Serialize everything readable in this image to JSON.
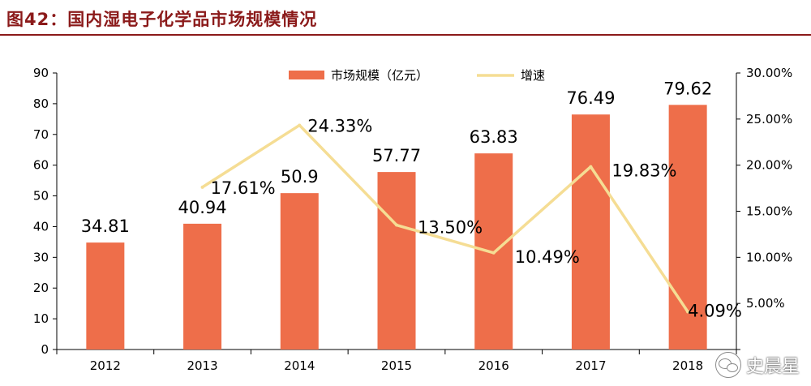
{
  "figure": {
    "title": "图42：国内湿电子化学品市场规模情况"
  },
  "watermark": {
    "text": "史晨星",
    "icon": "wechat-icon"
  },
  "colors": {
    "bar": "#EE6E4A",
    "line": "#F5DD94",
    "title": "#8B1A1A",
    "axis": "#000000",
    "text": "#000000"
  },
  "chart_data": {
    "type": "bar",
    "categories": [
      "2012",
      "2013",
      "2014",
      "2015",
      "2016",
      "2017",
      "2018"
    ],
    "series": [
      {
        "name": "市场规模（亿元）",
        "type": "bar",
        "axis": "left",
        "values": [
          34.81,
          40.94,
          50.9,
          57.77,
          63.83,
          76.49,
          79.62
        ],
        "labels": [
          "34.81",
          "40.94",
          "50.9",
          "57.77",
          "63.83",
          "76.49",
          "79.62"
        ]
      },
      {
        "name": "增速",
        "type": "line",
        "axis": "right",
        "values": [
          null,
          17.61,
          24.33,
          13.5,
          10.49,
          19.83,
          4.09
        ],
        "labels": [
          "",
          "17.61%",
          "24.33%",
          "13.50%",
          "10.49%",
          "19.83%",
          "4.09%"
        ]
      }
    ],
    "y_left": {
      "min": 0,
      "max": 90,
      "ticks": [
        "0",
        "10",
        "20",
        "30",
        "40",
        "50",
        "60",
        "70",
        "80",
        "90"
      ]
    },
    "y_right": {
      "min": 0,
      "max": 30,
      "ticks": [
        "",
        "5.00%",
        "10.00%",
        "15.00%",
        "20.00%",
        "25.00%",
        "30.00%"
      ]
    },
    "legend": {
      "position": "top-center",
      "entries": [
        "市场规模（亿元）",
        "增速"
      ]
    },
    "grid": false
  }
}
